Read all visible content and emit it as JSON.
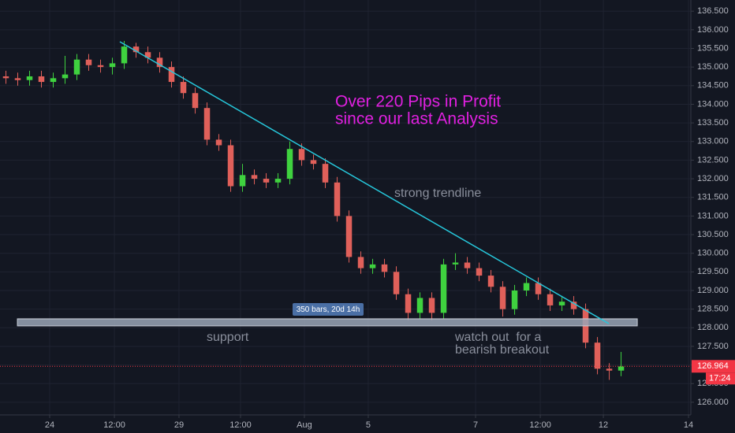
{
  "chart_data": {
    "type": "candlestick",
    "x": [
      0.5,
      1.5,
      2.5,
      3.5,
      4.5,
      5.5,
      6.5,
      7.5,
      8.5,
      9.5,
      10.5,
      11.5,
      12.5,
      13.5,
      14.5,
      15.5,
      16.5,
      17.5,
      18.5,
      19.5,
      20.5,
      21.5,
      22.5,
      23.5,
      24.5,
      25.5,
      26.5,
      27.5,
      28.5,
      29.5,
      30.5,
      31.5,
      32.5,
      33.5,
      34.5,
      35.5,
      36.5,
      37.5,
      38.5,
      39.5,
      40.5,
      41.5,
      42.5,
      43.5,
      44.5,
      45.5,
      46.5,
      47.5,
      48.5,
      49.5,
      50.5,
      51.5,
      52.5
    ],
    "open": [
      134.75,
      134.7,
      134.65,
      134.75,
      134.6,
      134.7,
      134.8,
      135.2,
      135.05,
      135.0,
      135.1,
      135.55,
      135.4,
      135.25,
      135.0,
      134.6,
      134.3,
      133.9,
      133.05,
      132.9,
      131.8,
      132.1,
      132.0,
      131.9,
      132.0,
      132.8,
      132.5,
      132.4,
      131.9,
      131.0,
      129.9,
      129.6,
      129.7,
      129.5,
      128.9,
      128.4,
      128.8,
      128.4,
      129.7,
      129.75,
      129.6,
      129.4,
      129.1,
      128.5,
      129.0,
      129.2,
      128.9,
      128.6,
      128.7,
      128.5,
      127.6,
      126.9,
      126.85
    ],
    "high": [
      134.9,
      134.85,
      134.9,
      134.9,
      134.85,
      135.3,
      135.35,
      135.35,
      135.2,
      135.25,
      135.7,
      135.65,
      135.55,
      135.4,
      135.15,
      134.75,
      134.45,
      134.05,
      133.2,
      133.05,
      132.4,
      132.25,
      132.15,
      132.15,
      133.0,
      132.95,
      132.65,
      132.55,
      132.05,
      131.15,
      130.05,
      129.85,
      129.85,
      129.65,
      129.05,
      128.95,
      128.95,
      129.85,
      130.0,
      129.9,
      129.75,
      129.55,
      129.25,
      129.15,
      129.35,
      129.35,
      129.05,
      128.85,
      128.85,
      128.65,
      127.75,
      127.05,
      127.35
    ],
    "low": [
      134.55,
      134.5,
      134.5,
      134.45,
      134.45,
      134.55,
      134.65,
      134.9,
      134.85,
      134.8,
      134.95,
      135.25,
      135.1,
      134.85,
      134.45,
      134.15,
      133.75,
      132.9,
      132.75,
      131.65,
      131.65,
      131.85,
      131.75,
      131.75,
      131.85,
      132.35,
      132.25,
      131.75,
      130.85,
      129.75,
      129.45,
      129.45,
      129.35,
      128.75,
      128.2,
      128.25,
      128.2,
      128.25,
      129.55,
      129.45,
      129.25,
      128.95,
      128.3,
      128.35,
      128.85,
      128.75,
      128.45,
      128.45,
      128.35,
      127.45,
      126.75,
      126.6,
      126.7
    ],
    "close": [
      134.7,
      134.65,
      134.75,
      134.6,
      134.7,
      134.8,
      135.2,
      135.05,
      135.0,
      135.1,
      135.55,
      135.4,
      135.25,
      135.0,
      134.6,
      134.3,
      133.9,
      133.05,
      132.9,
      131.8,
      132.1,
      132.0,
      131.9,
      132.0,
      132.8,
      132.5,
      132.4,
      131.9,
      131.0,
      129.9,
      129.6,
      129.7,
      129.5,
      128.9,
      128.4,
      128.8,
      128.4,
      129.7,
      129.75,
      129.6,
      129.4,
      129.1,
      128.5,
      129.0,
      129.2,
      128.9,
      128.6,
      128.7,
      128.5,
      127.6,
      126.9,
      126.85,
      126.96
    ],
    "up_color": "#3fd23f",
    "down_color": "#e0605a",
    "xlim": [
      0,
      58.33
    ],
    "xticks": [
      {
        "value": 4.2,
        "label": "24"
      },
      {
        "value": 9.67,
        "label": "12:00"
      },
      {
        "value": 15.13,
        "label": "29"
      },
      {
        "value": 20.33,
        "label": "12:00"
      },
      {
        "value": 25.73,
        "label": "Aug"
      },
      {
        "value": 31.13,
        "label": "5"
      },
      {
        "value": 40.2,
        "label": "7"
      },
      {
        "value": 45.67,
        "label": "12:00"
      },
      {
        "value": 51.0,
        "label": "12"
      },
      {
        "value": 58.2,
        "label": "14"
      }
    ],
    "ylim": [
      125.66,
      136.8
    ],
    "yticks": [
      {
        "value": 126,
        "label": "126.000"
      },
      {
        "value": 126.5,
        "label": "126.500"
      },
      {
        "value": 127,
        "label": "127.000"
      },
      {
        "value": 127.5,
        "label": "127.500"
      },
      {
        "value": 128,
        "label": "128.000"
      },
      {
        "value": 128.5,
        "label": "128.500"
      },
      {
        "value": 129,
        "label": "129.000"
      },
      {
        "value": 129.5,
        "label": "129.500"
      },
      {
        "value": 130,
        "label": "130.000"
      },
      {
        "value": 130.5,
        "label": "130.500"
      },
      {
        "value": 131,
        "label": "131.000"
      },
      {
        "value": 131.5,
        "label": "131.500"
      },
      {
        "value": 132,
        "label": "132.000"
      },
      {
        "value": 132.5,
        "label": "132.500"
      },
      {
        "value": 133,
        "label": "133.000"
      },
      {
        "value": 133.5,
        "label": "133.500"
      },
      {
        "value": 134,
        "label": "134.000"
      },
      {
        "value": 134.5,
        "label": "134.500"
      },
      {
        "value": 135,
        "label": "135.000"
      },
      {
        "value": 135.5,
        "label": "135.500"
      },
      {
        "value": 136,
        "label": "136.000"
      },
      {
        "value": 136.5,
        "label": "136.500"
      }
    ],
    "grid": true,
    "last_price": {
      "value": 126.964,
      "label": "126.964",
      "countdown": "17:24",
      "color": "#f23645"
    },
    "trendline": {
      "x": [
        10.13,
        51.47
      ],
      "y": [
        135.68,
        128.11
      ],
      "color": "#26c6da"
    },
    "support_zone": {
      "x": [
        1.47,
        53.87
      ],
      "y": [
        128.05,
        128.24
      ],
      "color": "#9aa4b5"
    },
    "range_label": "350 bars, 20d 14h",
    "annotations": {
      "profit": [
        "Over 220 Pips in Profit",
        "since our last Analysis"
      ],
      "trendline": "strong trendline",
      "support": "support",
      "breakout": [
        "watch out  for a",
        "bearish breakout"
      ]
    }
  }
}
